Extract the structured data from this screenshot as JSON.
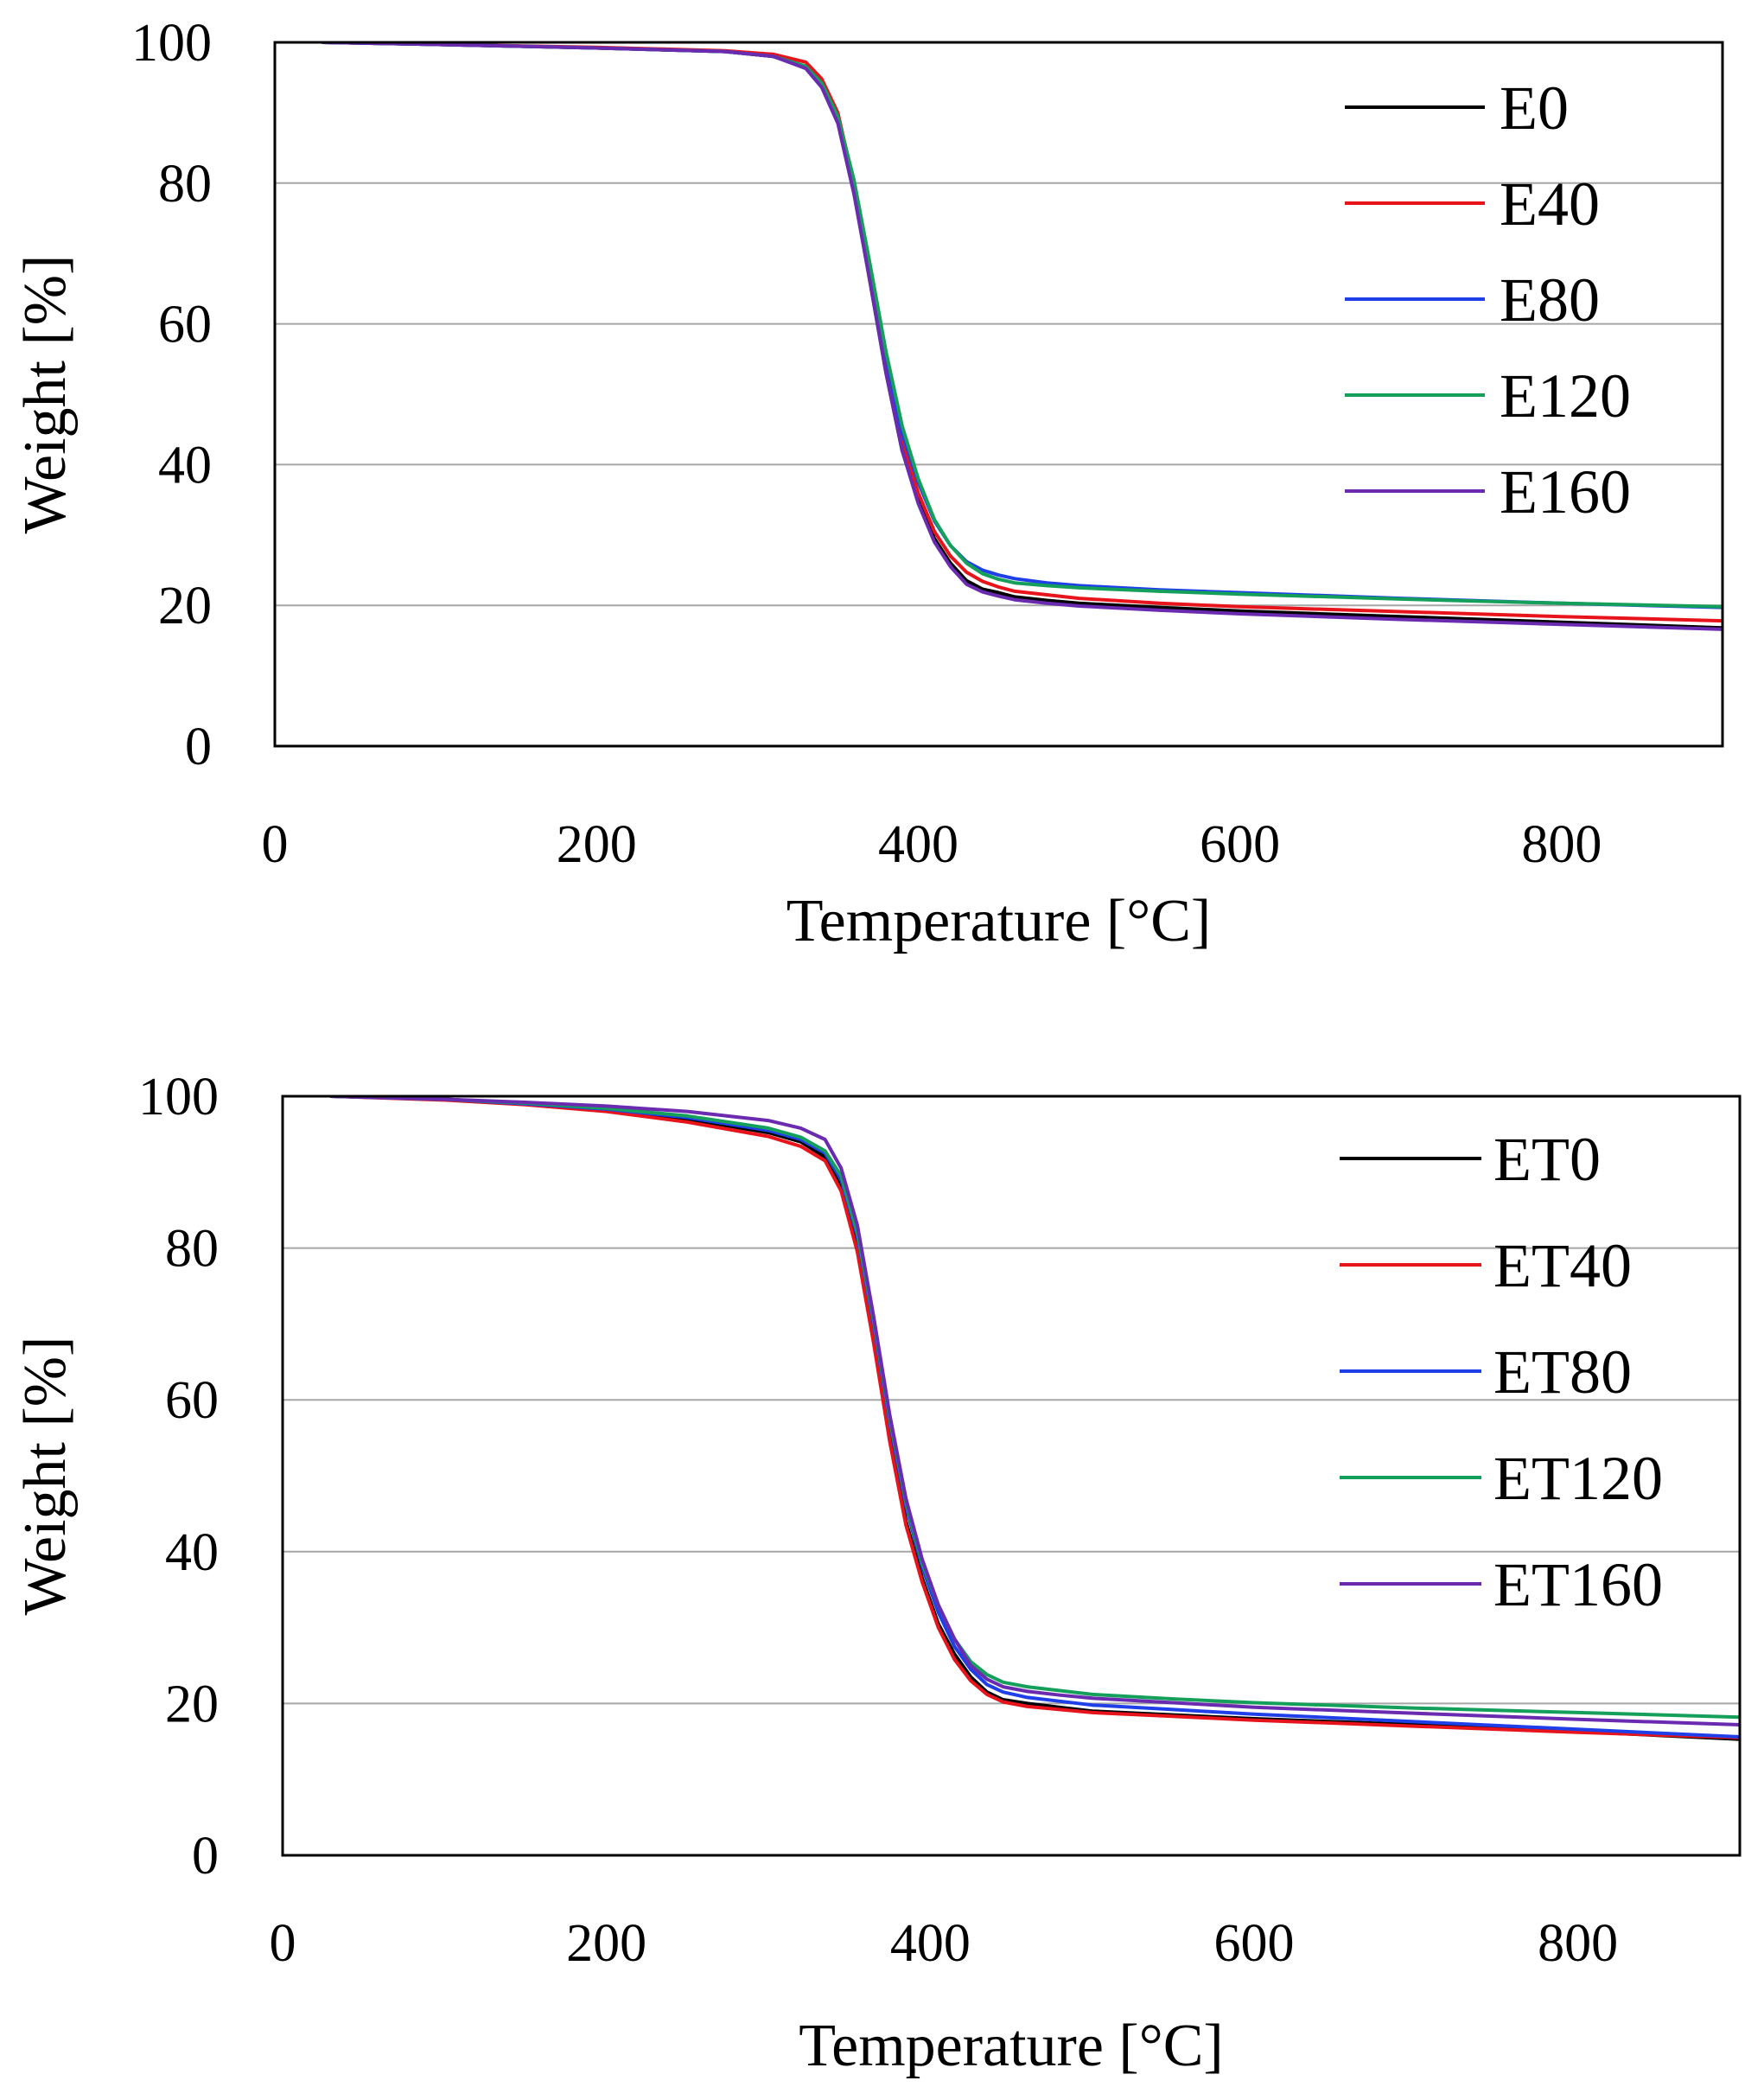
{
  "chart_data": [
    {
      "type": "line",
      "title": "",
      "xlabel": "Temperature [°C]",
      "ylabel": "Weight [%]",
      "xlim": [
        0,
        900
      ],
      "ylim": [
        0,
        100
      ],
      "x_ticks": [
        "0",
        "200",
        "400",
        "600",
        "800"
      ],
      "y_ticks": [
        "0",
        "20",
        "40",
        "60",
        "80",
        "100"
      ],
      "grid": "horizontal",
      "legend_position": "top-right",
      "series": [
        {
          "name": "E0",
          "color": "#000000",
          "x": [
            30,
            100,
            200,
            280,
            310,
            330,
            340,
            350,
            360,
            370,
            380,
            390,
            400,
            410,
            420,
            430,
            440,
            450,
            460,
            480,
            500,
            550,
            600,
            700,
            800,
            900
          ],
          "y": [
            100,
            99.7,
            99.2,
            98.7,
            98,
            96.5,
            94,
            89,
            79,
            66,
            53,
            42,
            35,
            29.5,
            26,
            23.5,
            22.3,
            21.8,
            21.2,
            20.7,
            20.3,
            19.7,
            19.2,
            18.4,
            17.6,
            16.8
          ]
        },
        {
          "name": "E40",
          "color": "#e8141c",
          "x": [
            30,
            100,
            200,
            280,
            310,
            330,
            340,
            350,
            360,
            370,
            380,
            390,
            400,
            410,
            420,
            430,
            440,
            450,
            460,
            480,
            500,
            550,
            600,
            700,
            800,
            900
          ],
          "y": [
            100,
            99.7,
            99.3,
            98.8,
            98.3,
            97.2,
            94.8,
            90,
            80,
            67,
            54,
            43,
            36,
            30.5,
            27,
            24.7,
            23.4,
            22.6,
            22,
            21.5,
            21,
            20.3,
            19.8,
            19.1,
            18.4,
            17.8
          ]
        },
        {
          "name": "E80",
          "color": "#1f3fe8",
          "x": [
            30,
            100,
            200,
            280,
            310,
            330,
            340,
            350,
            360,
            370,
            380,
            390,
            400,
            410,
            420,
            430,
            440,
            450,
            460,
            480,
            500,
            550,
            600,
            700,
            800,
            900
          ],
          "y": [
            100,
            99.7,
            99.2,
            98.7,
            98,
            96.6,
            94.2,
            89.5,
            80,
            67.5,
            55,
            44.5,
            37.5,
            32,
            28.5,
            26.2,
            25,
            24.3,
            23.8,
            23.2,
            22.8,
            22.2,
            21.8,
            21,
            20.3,
            19.7
          ]
        },
        {
          "name": "E120",
          "color": "#14a05a",
          "x": [
            30,
            100,
            200,
            280,
            310,
            330,
            340,
            350,
            360,
            370,
            380,
            390,
            400,
            410,
            420,
            430,
            440,
            450,
            460,
            480,
            500,
            550,
            600,
            700,
            800,
            900
          ],
          "y": [
            100,
            99.7,
            99.2,
            98.7,
            98,
            96.6,
            94.2,
            89.5,
            80.5,
            68.5,
            56,
            45.5,
            38,
            32.2,
            28.5,
            26,
            24.5,
            23.7,
            23.2,
            22.8,
            22.5,
            22,
            21.6,
            20.9,
            20.3,
            19.8
          ]
        },
        {
          "name": "E160",
          "color": "#6a2bb0",
          "x": [
            30,
            100,
            200,
            280,
            310,
            330,
            340,
            350,
            360,
            370,
            380,
            390,
            400,
            410,
            420,
            430,
            440,
            450,
            460,
            480,
            500,
            550,
            600,
            700,
            800,
            900
          ],
          "y": [
            100,
            99.7,
            99.2,
            98.7,
            98,
            96.3,
            93.6,
            88.5,
            78.5,
            66,
            53,
            42,
            34.5,
            29,
            25.5,
            23,
            21.9,
            21.3,
            20.8,
            20.3,
            19.9,
            19.3,
            18.8,
            18,
            17.3,
            16.6
          ]
        }
      ]
    },
    {
      "type": "line",
      "title": "",
      "xlabel": "Temperature [°C]",
      "ylabel": "Weight [%]",
      "xlim": [
        0,
        900
      ],
      "ylim": [
        0,
        100
      ],
      "x_ticks": [
        "0",
        "200",
        "400",
        "600",
        "800"
      ],
      "y_ticks": [
        "0",
        "20",
        "40",
        "60",
        "80",
        "100"
      ],
      "grid": "horizontal",
      "legend_position": "top-right",
      "series": [
        {
          "name": "ET0",
          "color": "#000000",
          "x": [
            30,
            100,
            150,
            200,
            250,
            300,
            320,
            335,
            345,
            355,
            365,
            375,
            385,
            395,
            405,
            415,
            425,
            435,
            445,
            460,
            480,
            500,
            550,
            600,
            700,
            800,
            900
          ],
          "y": [
            100,
            99.6,
            99,
            98.2,
            97,
            95.2,
            94,
            92,
            88,
            80,
            68,
            55,
            44,
            36.5,
            30.5,
            26.5,
            23.5,
            21.5,
            20.5,
            20,
            19.5,
            19,
            18.5,
            18,
            17.2,
            16.3,
            15.3
          ]
        },
        {
          "name": "ET40",
          "color": "#e8141c",
          "x": [
            30,
            100,
            150,
            200,
            250,
            300,
            320,
            335,
            345,
            355,
            365,
            375,
            385,
            395,
            405,
            415,
            425,
            435,
            445,
            460,
            480,
            500,
            550,
            600,
            700,
            800,
            900
          ],
          "y": [
            100,
            99.5,
            98.9,
            98,
            96.6,
            94.7,
            93.4,
            91.5,
            87.5,
            79.5,
            67.5,
            54.5,
            43.5,
            36,
            30,
            25.8,
            23,
            21.2,
            20.2,
            19.6,
            19.2,
            18.8,
            18.3,
            17.8,
            17,
            16.2,
            15.5
          ]
        },
        {
          "name": "ET80",
          "color": "#1f3fe8",
          "x": [
            30,
            100,
            150,
            200,
            250,
            300,
            320,
            335,
            345,
            355,
            365,
            375,
            385,
            395,
            405,
            415,
            425,
            435,
            445,
            460,
            480,
            500,
            550,
            600,
            700,
            800,
            900
          ],
          "y": [
            100,
            99.6,
            99,
            98.3,
            97.2,
            95.5,
            94.3,
            92.5,
            89,
            81.5,
            70,
            57,
            46,
            38,
            32,
            27.5,
            24.5,
            22.5,
            21.5,
            20.8,
            20.3,
            19.8,
            19.2,
            18.6,
            17.6,
            16.6,
            15.6
          ]
        },
        {
          "name": "ET120",
          "color": "#14a05a",
          "x": [
            30,
            100,
            150,
            200,
            250,
            300,
            320,
            335,
            345,
            355,
            365,
            375,
            385,
            395,
            405,
            415,
            425,
            435,
            445,
            460,
            480,
            500,
            550,
            600,
            700,
            800,
            900
          ],
          "y": [
            100,
            99.6,
            99.1,
            98.4,
            97.4,
            95.8,
            94.6,
            92.8,
            89.5,
            82,
            70.5,
            57.5,
            46.5,
            38.5,
            33,
            28.5,
            25.5,
            23.8,
            22.8,
            22.2,
            21.7,
            21.2,
            20.6,
            20.1,
            19.4,
            18.8,
            18.2
          ]
        },
        {
          "name": "ET160",
          "color": "#6a2bb0",
          "x": [
            30,
            100,
            150,
            200,
            250,
            300,
            320,
            335,
            345,
            355,
            365,
            375,
            385,
            395,
            405,
            415,
            425,
            435,
            445,
            460,
            480,
            500,
            550,
            600,
            700,
            800,
            900
          ],
          "y": [
            100,
            99.6,
            99.2,
            98.7,
            98,
            96.8,
            95.8,
            94.3,
            90.5,
            83,
            71,
            58,
            47,
            39,
            33,
            28.5,
            25,
            23.2,
            22.2,
            21.6,
            21.1,
            20.7,
            20.1,
            19.5,
            18.7,
            17.9,
            17.2
          ]
        }
      ]
    }
  ]
}
